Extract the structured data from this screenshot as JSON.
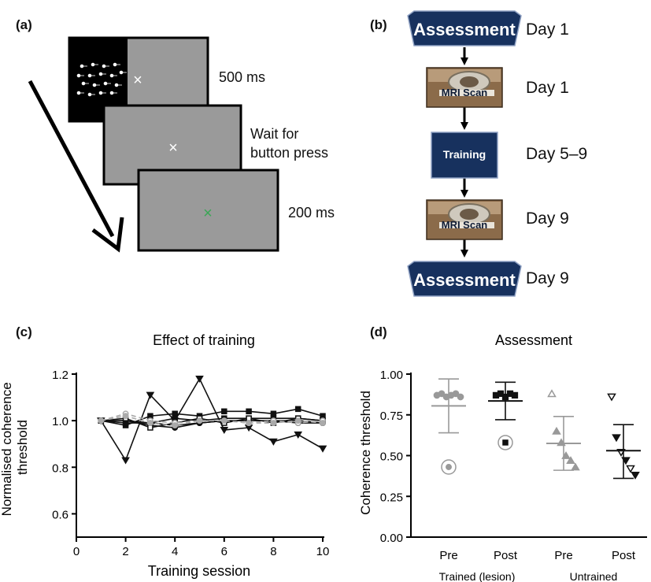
{
  "panel_labels": {
    "a": "(a)",
    "b": "(b)",
    "c": "(c)",
    "d": "(d)"
  },
  "panel_a": {
    "durations": [
      "500 ms",
      "Wait for\nbutton press",
      "200 ms"
    ],
    "fixation_symbol": "×",
    "colors": {
      "screen_gray": "#9a9a9a",
      "stimulus_black": "#000000",
      "feedback_green": "#3aa655"
    }
  },
  "panel_b": {
    "steps": [
      {
        "label": "Assessment",
        "type": "hexagon",
        "day": "Day 1"
      },
      {
        "label": "MRI Scan",
        "type": "photo",
        "day": "Day 1"
      },
      {
        "label": "Training",
        "type": "box",
        "day": "Day 5–9"
      },
      {
        "label": "MRI Scan",
        "type": "photo",
        "day": "Day 9"
      },
      {
        "label": "Assessment",
        "type": "hexagon",
        "day": "Day 9"
      }
    ],
    "colors": {
      "navy": "#17315e"
    }
  },
  "chart_data": [
    {
      "panel": "c",
      "type": "line",
      "title": "Effect of training",
      "xlabel": "Training session",
      "ylabel": "Normalised coherence threshold",
      "xlim": [
        0,
        10
      ],
      "ylim": [
        0.5,
        1.2
      ],
      "xticks": [
        0,
        2,
        4,
        6,
        8,
        10
      ],
      "yticks": [
        0.6,
        0.8,
        1.0,
        1.2
      ],
      "ytick_labels": [
        "0.6",
        "0.8",
        "1.0",
        "1.2"
      ],
      "x": [
        1,
        2,
        3,
        4,
        5,
        6,
        7,
        8,
        9,
        10
      ],
      "series": [
        {
          "marker": "triangle-down",
          "color": "#111111",
          "dashed": false,
          "values": [
            1.0,
            0.83,
            1.11,
            1.0,
            1.18,
            0.96,
            0.97,
            0.91,
            0.94,
            0.88
          ]
        },
        {
          "marker": "square",
          "color": "#111111",
          "dashed": false,
          "values": [
            1.0,
            0.98,
            1.02,
            1.03,
            1.02,
            1.04,
            1.04,
            1.03,
            1.05,
            1.02
          ]
        },
        {
          "marker": "square",
          "color": "#111111",
          "dashed": false,
          "values": [
            1.0,
            0.99,
            0.99,
            1.01,
            1.0,
            1.01,
            1.01,
            1.01,
            1.01,
            1.0
          ]
        },
        {
          "marker": "circle",
          "color": "#111111",
          "dashed": false,
          "values": [
            1.0,
            1.0,
            0.99,
            0.98,
            0.99,
            1.0,
            1.0,
            1.0,
            1.0,
            0.99
          ]
        },
        {
          "marker": "circle",
          "color": "#111111",
          "dashed": false,
          "values": [
            1.0,
            1.0,
            0.98,
            0.97,
            0.99,
            1.0,
            1.0,
            1.0,
            0.99,
            0.99
          ]
        },
        {
          "marker": "square-open",
          "color": "#111111",
          "dashed": false,
          "values": [
            1.0,
            1.01,
            0.97,
            0.99,
            1.01,
            0.99,
            1.01,
            0.99,
            1.01,
            1.0
          ]
        },
        {
          "marker": "circle-open",
          "color": "#aaaaaa",
          "dashed": true,
          "values": [
            1.0,
            1.03,
            1.0,
            0.99,
            1.0,
            1.0,
            0.99,
            1.0,
            0.99,
            1.0
          ]
        },
        {
          "marker": "circle",
          "color": "#aaaaaa",
          "dashed": true,
          "values": [
            1.0,
            1.02,
            0.99,
            0.98,
            1.0,
            1.0,
            0.99,
            0.99,
            1.0,
            0.99
          ]
        }
      ]
    },
    {
      "panel": "d",
      "type": "scatter",
      "title": "Assessment",
      "ylabel": "Coherence threshold",
      "ylim": [
        0,
        1
      ],
      "yticks": [
        0,
        0.25,
        0.5,
        0.75,
        1.0
      ],
      "ytick_labels": [
        "0.00",
        "0.25",
        "0.50",
        "0.75",
        "1.00"
      ],
      "categories": [
        "Pre",
        "Post",
        "Pre",
        "Post"
      ],
      "groups": [
        "Trained (lesion)",
        "Untrained"
      ],
      "series": [
        {
          "category": "Pre",
          "group": "Trained (lesion)",
          "color": "#999999",
          "marker": "circle",
          "points": [
            0.87,
            0.88,
            0.86,
            0.87,
            0.88,
            0.86
          ],
          "outlier": 0.43,
          "mean": 0.805,
          "sd_low": 0.64,
          "sd_high": 0.97
        },
        {
          "category": "Post",
          "group": "Trained (lesion)",
          "color": "#111111",
          "marker": "square",
          "points": [
            0.87,
            0.88,
            0.86,
            0.88,
            0.87
          ],
          "outlier": 0.58,
          "mean": 0.835,
          "sd_low": 0.72,
          "sd_high": 0.95
        },
        {
          "category": "Pre",
          "group": "Untrained",
          "color": "#999999",
          "marker": "triangle-up",
          "points": [
            0.88,
            0.65,
            0.58,
            0.5,
            0.47,
            0.43
          ],
          "mean": 0.575,
          "sd_low": 0.41,
          "sd_high": 0.74
        },
        {
          "category": "Post",
          "group": "Untrained",
          "color": "#111111",
          "marker": "triangle-down",
          "points": [
            0.86,
            0.61,
            0.52,
            0.47,
            0.42,
            0.38
          ],
          "mean": 0.53,
          "sd_low": 0.36,
          "sd_high": 0.69
        }
      ]
    }
  ]
}
